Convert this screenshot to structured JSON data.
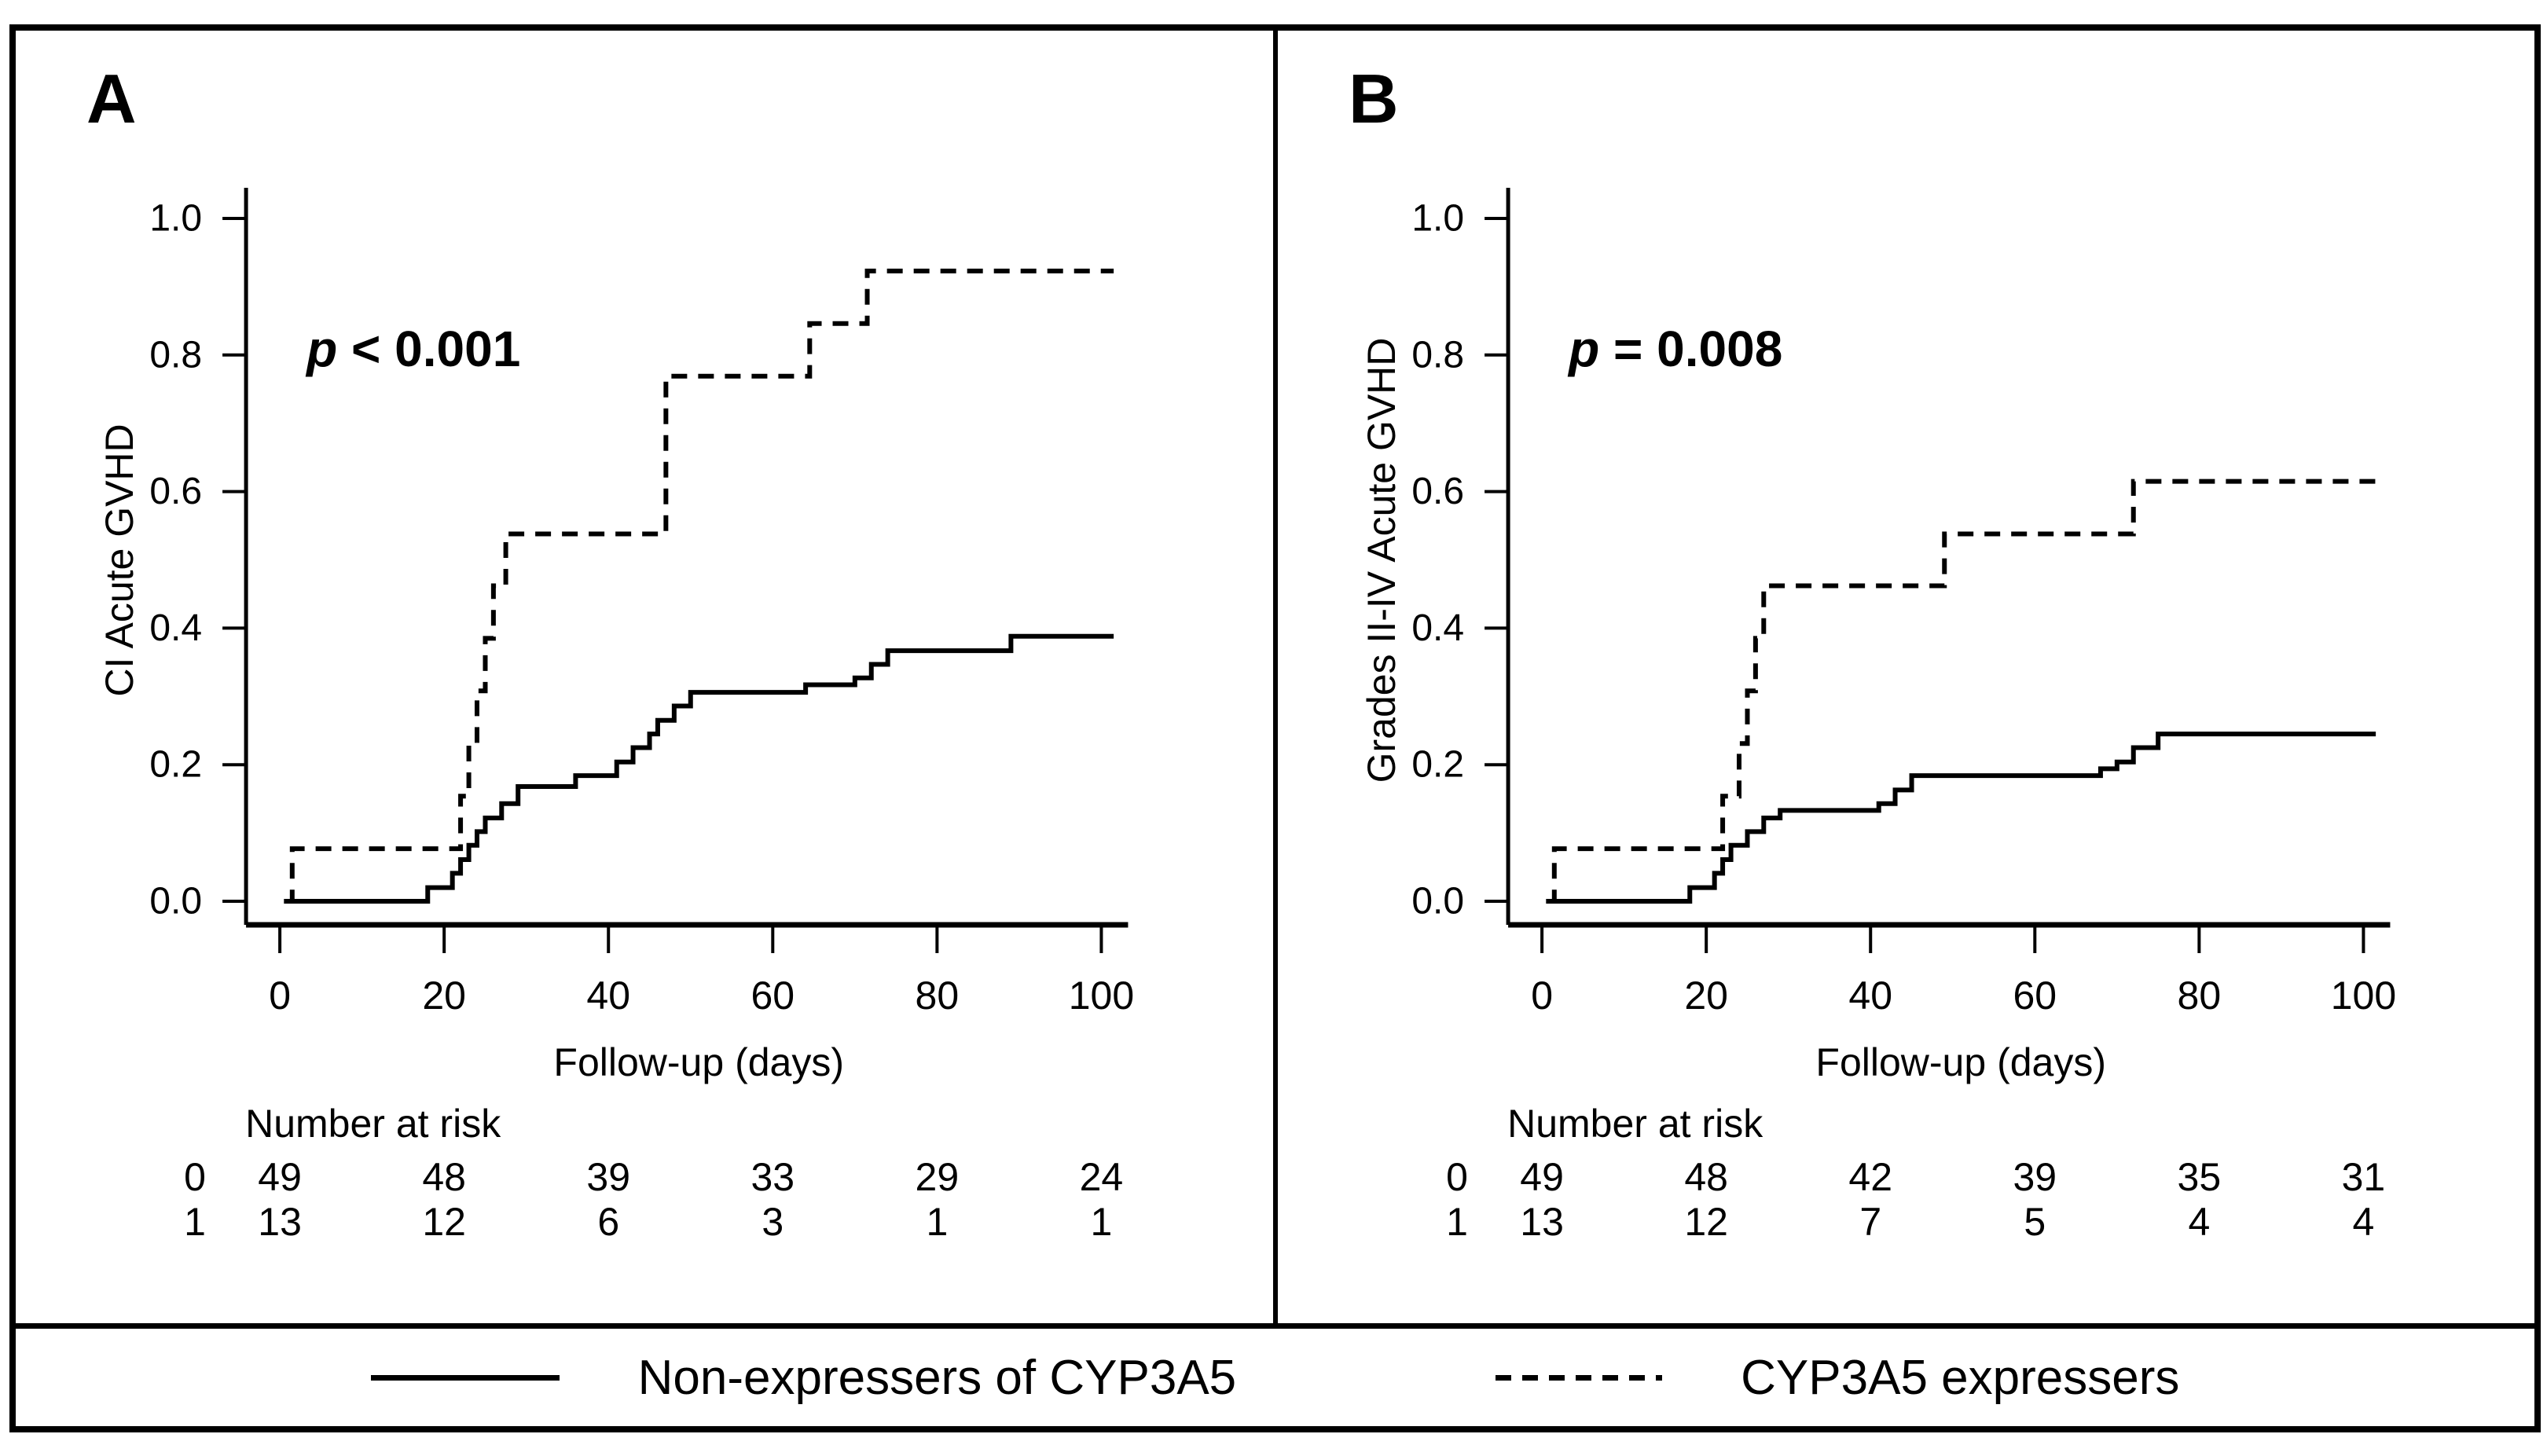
{
  "figure_type": "Cumulative incidence (Kaplan-Meier style) two-panel figure",
  "colors": {
    "line": "#000000",
    "background": "#ffffff",
    "border": "#000000"
  },
  "legend": {
    "position": "bottom",
    "entries": [
      {
        "style": "solid",
        "label": "Non-expressers of CYP3A5"
      },
      {
        "style": "dashed",
        "label": "CYP3A5 expressers"
      }
    ]
  },
  "chart_data": [
    {
      "type": "line",
      "subtype": "step",
      "panel_label": "A",
      "p_value_annotation": "p < 0.001",
      "p_italic_part": "p",
      "p_rest_part": " < 0.001",
      "xlabel": "Follow-up (days)",
      "ylabel": "CI Acute GVHD",
      "xlim": [
        0,
        104
      ],
      "ylim": [
        0,
        1.05
      ],
      "x_ticks": [
        0,
        20,
        40,
        60,
        80,
        100
      ],
      "y_ticks": [
        1.0,
        0.8,
        0.6,
        0.4,
        0.2,
        0.0
      ],
      "grid": false,
      "series": [
        {
          "name": "Non-expressers of CYP3A5",
          "line": "solid",
          "steps": [
            [
              0.5,
              0
            ],
            [
              18,
              0.02
            ],
            [
              21,
              0.041
            ],
            [
              22,
              0.061
            ],
            [
              23,
              0.082
            ],
            [
              24,
              0.102
            ],
            [
              25,
              0.122
            ],
            [
              27,
              0.143
            ],
            [
              29,
              0.168
            ],
            [
              36,
              0.184
            ],
            [
              41,
              0.204
            ],
            [
              43,
              0.225
            ],
            [
              45,
              0.245
            ],
            [
              46,
              0.265
            ],
            [
              48,
              0.286
            ],
            [
              50,
              0.306
            ],
            [
              64,
              0.317
            ],
            [
              70,
              0.327
            ],
            [
              72,
              0.347
            ],
            [
              74,
              0.367
            ],
            [
              89,
              0.388
            ]
          ]
        },
        {
          "name": "CYP3A5 expressers",
          "line": "dashed",
          "steps": [
            [
              1,
              0
            ],
            [
              1.5,
              0.077
            ],
            [
              22,
              0.154
            ],
            [
              23,
              0.231
            ],
            [
              24,
              0.308
            ],
            [
              25,
              0.385
            ],
            [
              26,
              0.462
            ],
            [
              27.5,
              0.538
            ],
            [
              47,
              0.769
            ],
            [
              64.5,
              0.846
            ],
            [
              71.5,
              0.923
            ]
          ]
        }
      ],
      "number_at_risk": {
        "header": "Number at risk",
        "time_points": [
          0,
          20,
          40,
          60,
          80,
          100
        ],
        "rows": [
          {
            "group": "0",
            "counts": [
              49,
              48,
              39,
              33,
              29,
              24
            ]
          },
          {
            "group": "1",
            "counts": [
              13,
              12,
              6,
              3,
              1,
              1
            ]
          }
        ]
      }
    },
    {
      "type": "line",
      "subtype": "step",
      "panel_label": "B",
      "p_value_annotation": "p = 0.008",
      "p_italic_part": "p",
      "p_rest_part": " = 0.008",
      "xlabel": "Follow-up (days)",
      "ylabel": "Grades II-IV Acute GVHD",
      "xlim": [
        0,
        104
      ],
      "ylim": [
        0,
        1.05
      ],
      "x_ticks": [
        0,
        20,
        40,
        60,
        80,
        100
      ],
      "y_ticks": [
        1.0,
        0.8,
        0.6,
        0.4,
        0.2,
        0.0
      ],
      "grid": false,
      "series": [
        {
          "name": "Non-expressers of CYP3A5",
          "line": "solid",
          "steps": [
            [
              0.5,
              0
            ],
            [
              18,
              0.02
            ],
            [
              21,
              0.041
            ],
            [
              22,
              0.061
            ],
            [
              23,
              0.082
            ],
            [
              25,
              0.102
            ],
            [
              27,
              0.122
            ],
            [
              29,
              0.133
            ],
            [
              41,
              0.143
            ],
            [
              43,
              0.163
            ],
            [
              45,
              0.184
            ],
            [
              68,
              0.194
            ],
            [
              70,
              0.204
            ],
            [
              72,
              0.225
            ],
            [
              75,
              0.245
            ]
          ]
        },
        {
          "name": "CYP3A5 expressers",
          "line": "dashed",
          "steps": [
            [
              1,
              0
            ],
            [
              1.5,
              0.077
            ],
            [
              22,
              0.154
            ],
            [
              24,
              0.231
            ],
            [
              25,
              0.308
            ],
            [
              26,
              0.385
            ],
            [
              27,
              0.462
            ],
            [
              49,
              0.538
            ],
            [
              72,
              0.615
            ]
          ]
        }
      ],
      "number_at_risk": {
        "header": "Number at risk",
        "time_points": [
          0,
          20,
          40,
          60,
          80,
          100
        ],
        "rows": [
          {
            "group": "0",
            "counts": [
              49,
              48,
              42,
              39,
              35,
              31
            ]
          },
          {
            "group": "1",
            "counts": [
              13,
              12,
              7,
              5,
              4,
              4
            ]
          }
        ]
      }
    }
  ]
}
